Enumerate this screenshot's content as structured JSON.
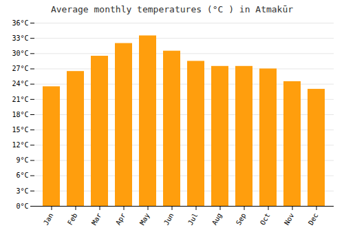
{
  "chart_data": {
    "type": "bar",
    "title": "Average monthly temperatures (°C ) in Atmakūr",
    "categories": [
      "Jan",
      "Feb",
      "Mar",
      "Apr",
      "May",
      "Jun",
      "Jul",
      "Aug",
      "Sep",
      "Oct",
      "Nov",
      "Dec"
    ],
    "values": [
      23.5,
      26.5,
      29.5,
      32.0,
      33.5,
      30.5,
      28.5,
      27.5,
      27.5,
      27.0,
      24.5,
      23.0
    ],
    "color": "#ff9e0d",
    "ylim": [
      0,
      36
    ],
    "yticks": [
      {
        "value": 0,
        "label": "0°C"
      },
      {
        "value": 3,
        "label": "3°C"
      },
      {
        "value": 6,
        "label": "6°C"
      },
      {
        "value": 9,
        "label": "9°C"
      },
      {
        "value": 12,
        "label": "12°C"
      },
      {
        "value": 15,
        "label": "15°C"
      },
      {
        "value": 18,
        "label": "18°C"
      },
      {
        "value": 21,
        "label": "21°C"
      },
      {
        "value": 24,
        "label": "24°C"
      },
      {
        "value": 27,
        "label": "27°C"
      },
      {
        "value": 30,
        "label": "30°C"
      },
      {
        "value": 33,
        "label": "33°C"
      },
      {
        "value": 36,
        "label": "36°C"
      }
    ],
    "grid": true
  }
}
